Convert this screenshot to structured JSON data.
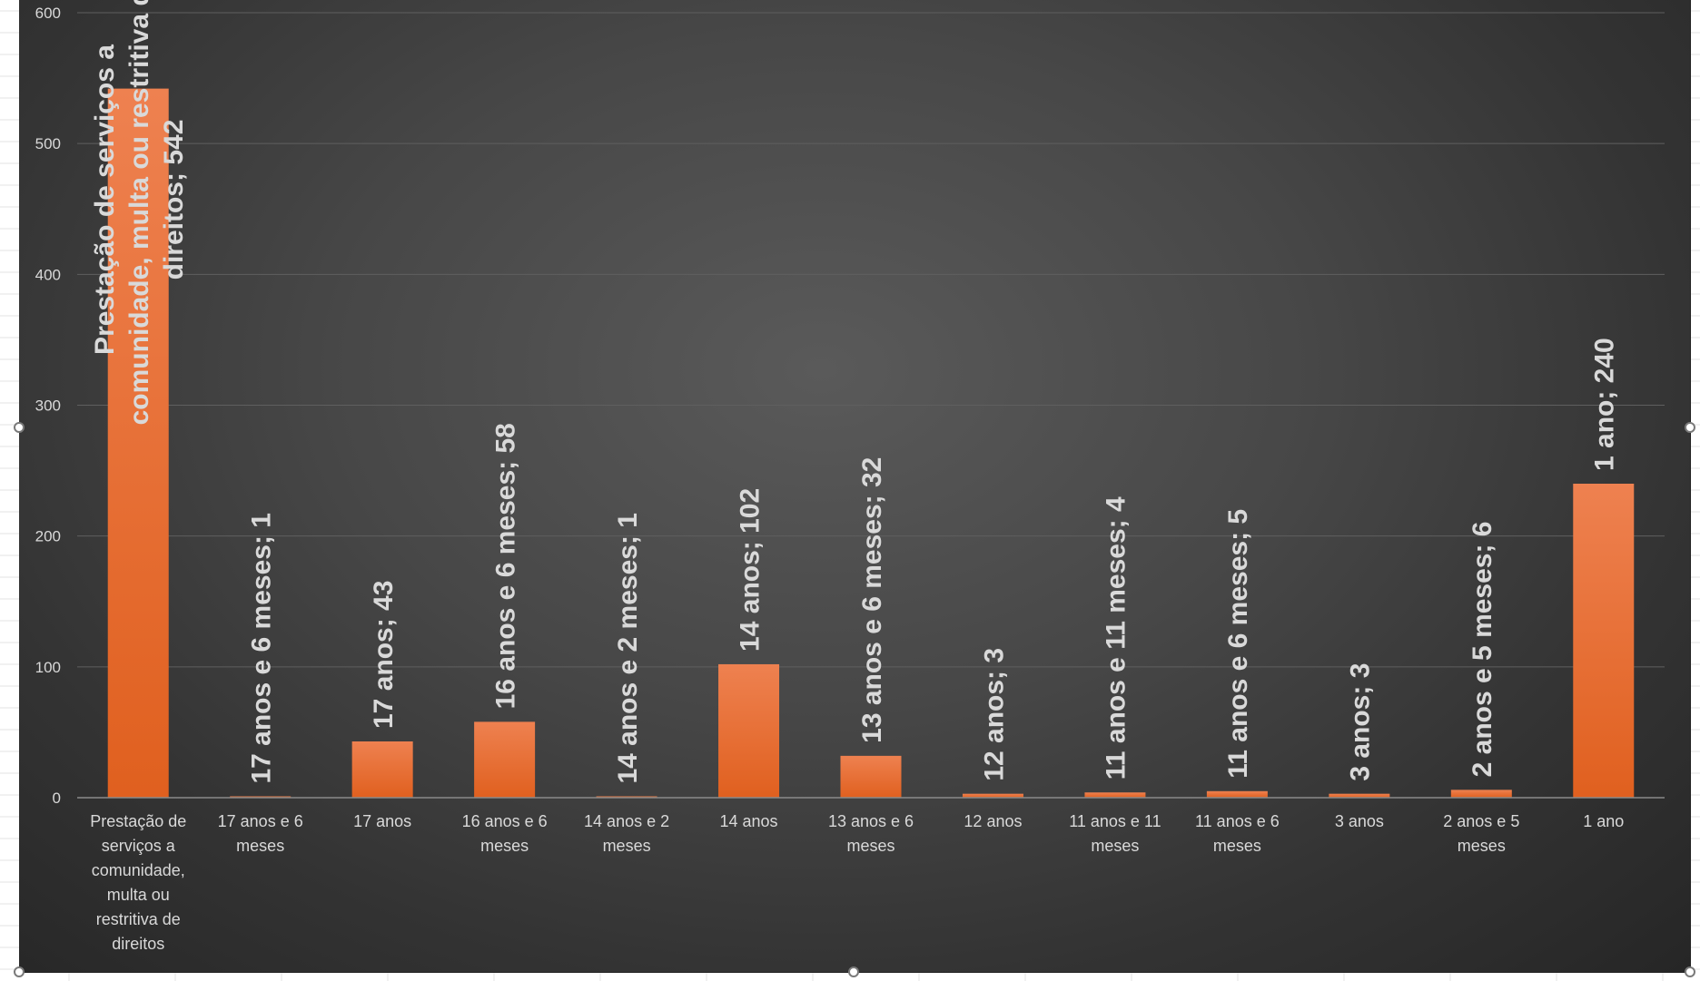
{
  "chart_data": {
    "type": "bar",
    "categories": [
      "Prestação de serviços a comunidade, multa ou restritiva de direitos",
      "17 anos e 6 meses",
      "17 anos",
      "16 anos e 6 meses",
      "14 anos e 2 meses",
      "14 anos",
      "13 anos e 6 meses",
      "12 anos",
      "11 anos e 11 meses",
      "11 anos e 6 meses",
      "3 anos",
      "2 anos e 5 meses",
      "1 ano"
    ],
    "category_label_lines": [
      [
        "Prestação de",
        "serviços a",
        "comunidade,",
        "multa ou",
        "restritiva de",
        "direitos"
      ],
      [
        "17 anos e 6",
        "meses"
      ],
      [
        "17 anos"
      ],
      [
        "16 anos e 6",
        "meses"
      ],
      [
        "14 anos e 2",
        "meses"
      ],
      [
        "14 anos"
      ],
      [
        "13 anos e 6",
        "meses"
      ],
      [
        "12 anos"
      ],
      [
        "11 anos e 11",
        "meses"
      ],
      [
        "11 anos e 6",
        "meses"
      ],
      [
        "3 anos"
      ],
      [
        "2 anos e 5",
        "meses"
      ],
      [
        "1 ano"
      ]
    ],
    "values": [
      542,
      1,
      43,
      58,
      1,
      102,
      32,
      3,
      4,
      5,
      3,
      6,
      240
    ],
    "data_label_lines": [
      [
        "Prestação de serviços a",
        "comunidade, multa ou restritiva de",
        "direitos; 542"
      ],
      [
        "17 anos e 6 meses; 1"
      ],
      [
        "17 anos; 43"
      ],
      [
        "16 anos e 6 meses; 58"
      ],
      [
        "14 anos e 2 meses; 1"
      ],
      [
        "14 anos; 102"
      ],
      [
        "13 anos e 6 meses; 32"
      ],
      [
        "12 anos; 3"
      ],
      [
        "11 anos e 11 meses; 4"
      ],
      [
        "11 anos e 6 meses; 5"
      ],
      [
        "3 anos; 3"
      ],
      [
        "2 anos e 5 meses; 6"
      ],
      [
        "1 ano; 240"
      ]
    ],
    "y_ticks": [
      0,
      100,
      200,
      300,
      400,
      500,
      600
    ],
    "ylim": [
      0,
      600
    ],
    "title": "",
    "xlabel": "",
    "ylabel": "",
    "grid": true,
    "legend": "none",
    "colors": {
      "bar_top": "#ee8150",
      "bar_bottom": "#e0601f",
      "gridline": "#5f5f5f",
      "axis_line": "#8a8a8a",
      "tick_label": "#d9d9d9",
      "data_label": "#d9d9d9"
    }
  }
}
